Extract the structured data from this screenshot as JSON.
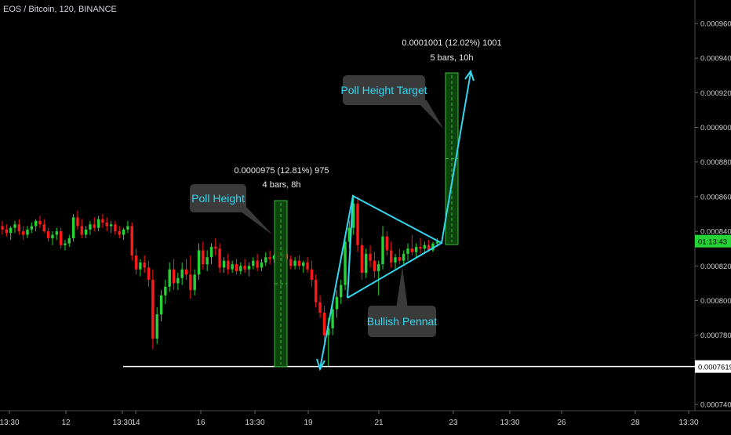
{
  "symbol_title": "EOS / Bitcoin, 120, BINANCE",
  "price_tag": "0.0007619",
  "live_tag": "01:13:43",
  "colors": {
    "background": "#000000",
    "up": "#26d336",
    "down": "#ff1a1a",
    "annotation": "#33d6ee",
    "label_bg": "#3a3a3a",
    "box_fill": "#0f4f0f",
    "box_stroke": "#35c035"
  },
  "annotations": {
    "poll_height_label": "Poll Height",
    "poll_target_label": "Poll Height Target",
    "pennant_label": "Bullish Pennat",
    "measure_1_line1": "0.0000975 (12.81%) 975",
    "measure_1_line2": "4 bars, 8h",
    "measure_2_line1": "0.0001001 (12.02%) 1001",
    "measure_2_line2": "5 bars, 10h"
  },
  "chart_data": {
    "type": "candlestick",
    "title": "EOS / Bitcoin, 120, BINANCE",
    "ylim": [
      0.000739,
      0.000971
    ],
    "y_ticks": [
      "0.0009600",
      "0.0009400",
      "0.0009200",
      "0.0009000",
      "0.0008800",
      "0.0008600",
      "0.0008400",
      "0.0008200",
      "0.0008000",
      "0.0007800",
      "0.0007619",
      "0.0007400"
    ],
    "x_ticks": [
      "13:30",
      "12",
      "13:30",
      "14",
      "16",
      "13:30",
      "19",
      "21",
      "23",
      "13:30",
      "26",
      "28",
      "13:30"
    ],
    "support_level": 0.0007619,
    "last_price": 0.0008343,
    "candles_ohlc": [
      [
        0.000843,
        0.000846,
        0.000838,
        0.000841
      ],
      [
        0.000841,
        0.000844,
        0.000837,
        0.000839
      ],
      [
        0.000839,
        0.000843,
        0.000835,
        0.000842
      ],
      [
        0.000842,
        0.000846,
        0.000839,
        0.000844
      ],
      [
        0.000844,
        0.000847,
        0.000838,
        0.00084
      ],
      [
        0.00084,
        0.000843,
        0.000835,
        0.000838
      ],
      [
        0.000838,
        0.000843,
        0.000836,
        0.000841
      ],
      [
        0.000841,
        0.000845,
        0.000839,
        0.000843
      ],
      [
        0.000843,
        0.000847,
        0.00084,
        0.000846
      ],
      [
        0.000846,
        0.000849,
        0.000842,
        0.000844
      ],
      [
        0.000844,
        0.000847,
        0.000839,
        0.00084
      ],
      [
        0.00084,
        0.000842,
        0.000834,
        0.000836
      ],
      [
        0.000836,
        0.00084,
        0.000832,
        0.000838
      ],
      [
        0.000838,
        0.000842,
        0.000835,
        0.00084
      ],
      [
        0.00084,
        0.000842,
        0.00083,
        0.000832
      ],
      [
        0.000832,
        0.000835,
        0.000829,
        0.000833
      ],
      [
        0.000833,
        0.000838,
        0.000831,
        0.000836
      ],
      [
        0.000836,
        0.00085,
        0.000834,
        0.000848
      ],
      [
        0.000848,
        0.000852,
        0.000841,
        0.000843
      ],
      [
        0.000843,
        0.000847,
        0.000836,
        0.000838
      ],
      [
        0.000838,
        0.000843,
        0.000836,
        0.000841
      ],
      [
        0.000841,
        0.000846,
        0.000838,
        0.000844
      ],
      [
        0.000844,
        0.000848,
        0.00084,
        0.000842
      ],
      [
        0.000842,
        0.000849,
        0.00084,
        0.000847
      ],
      [
        0.000847,
        0.00085,
        0.000842,
        0.000845
      ],
      [
        0.000845,
        0.000848,
        0.00084,
        0.000843
      ],
      [
        0.000843,
        0.000846,
        0.000839,
        0.000844
      ],
      [
        0.000844,
        0.000846,
        0.000838,
        0.00084
      ],
      [
        0.00084,
        0.000843,
        0.000836,
        0.000838
      ],
      [
        0.000838,
        0.000842,
        0.000835,
        0.000841
      ],
      [
        0.000841,
        0.000846,
        0.000839,
        0.000843
      ],
      [
        0.000843,
        0.000845,
        0.000823,
        0.000826
      ],
      [
        0.000826,
        0.00083,
        0.000815,
        0.000818
      ],
      [
        0.000818,
        0.000824,
        0.000814,
        0.000822
      ],
      [
        0.000822,
        0.000826,
        0.000816,
        0.000819
      ],
      [
        0.000819,
        0.000823,
        0.000808,
        0.000812
      ],
      [
        0.000812,
        0.000818,
        0.000772,
        0.000778
      ],
      [
        0.000778,
        0.000796,
        0.000775,
        0.000792
      ],
      [
        0.000792,
        0.000806,
        0.000788,
        0.000803
      ],
      [
        0.000803,
        0.000812,
        0.000798,
        0.000808
      ],
      [
        0.000808,
        0.000822,
        0.000805,
        0.000818
      ],
      [
        0.000818,
        0.000824,
        0.000806,
        0.00081
      ],
      [
        0.00081,
        0.000816,
        0.000806,
        0.000813
      ],
      [
        0.000813,
        0.000822,
        0.000809,
        0.000818
      ],
      [
        0.000818,
        0.000824,
        0.000812,
        0.000815
      ],
      [
        0.000815,
        0.000826,
        0.000801,
        0.000806
      ],
      [
        0.000806,
        0.000818,
        0.000803,
        0.000815
      ],
      [
        0.000815,
        0.000833,
        0.000812,
        0.000829
      ],
      [
        0.000829,
        0.000834,
        0.000818,
        0.000821
      ],
      [
        0.000821,
        0.000829,
        0.000817,
        0.000825
      ],
      [
        0.000825,
        0.000833,
        0.000821,
        0.000831
      ],
      [
        0.000831,
        0.000836,
        0.000826,
        0.00083
      ],
      [
        0.00083,
        0.000833,
        0.000816,
        0.000819
      ],
      [
        0.000819,
        0.000825,
        0.000816,
        0.000823
      ],
      [
        0.000823,
        0.000827,
        0.000815,
        0.000818
      ],
      [
        0.000818,
        0.000823,
        0.000816,
        0.000821
      ],
      [
        0.000821,
        0.000824,
        0.000815,
        0.000817
      ],
      [
        0.000817,
        0.000822,
        0.000815,
        0.00082
      ],
      [
        0.00082,
        0.000824,
        0.000816,
        0.000818
      ],
      [
        0.000818,
        0.000822,
        0.000814,
        0.00082
      ],
      [
        0.00082,
        0.000825,
        0.000818,
        0.000823
      ],
      [
        0.000823,
        0.000827,
        0.000817,
        0.000819
      ],
      [
        0.000819,
        0.000824,
        0.000817,
        0.000822
      ],
      [
        0.000822,
        0.000828,
        0.00082,
        0.000825
      ],
      [
        0.000825,
        0.000829,
        0.000821,
        0.000824
      ],
      [
        0.000824,
        0.000827,
        0.000822,
        0.000826
      ],
      [
        0.000826,
        0.000828,
        0.000823,
        0.000825
      ],
      [
        0.000825,
        0.00083,
        0.000822,
        0.000827
      ],
      [
        0.000827,
        0.000829,
        0.000822,
        0.000824
      ],
      [
        0.000824,
        0.000826,
        0.000818,
        0.00082
      ],
      [
        0.00082,
        0.000825,
        0.000818,
        0.000823
      ],
      [
        0.000823,
        0.000826,
        0.000818,
        0.00082
      ],
      [
        0.00082,
        0.000823,
        0.000816,
        0.000822
      ],
      [
        0.000822,
        0.000825,
        0.000816,
        0.000818
      ],
      [
        0.000818,
        0.000823,
        0.000808,
        0.000812
      ],
      [
        0.000812,
        0.000815,
        0.000796,
        0.000799
      ],
      [
        0.000799,
        0.000803,
        0.00079,
        0.000793
      ],
      [
        0.000793,
        0.000797,
        0.000776,
        0.00078
      ],
      [
        0.00078,
        0.00079,
        0.000762,
        0.000784
      ],
      [
        0.000784,
        0.000798,
        0.00078,
        0.000795
      ],
      [
        0.000795,
        0.000806,
        0.00079,
        0.000802
      ],
      [
        0.000802,
        0.000812,
        0.000798,
        0.000809
      ],
      [
        0.000809,
        0.000838,
        0.000806,
        0.000834
      ],
      [
        0.000834,
        0.000846,
        0.00083,
        0.000842
      ],
      [
        0.000842,
        0.000861,
        0.000838,
        0.000856
      ],
      [
        0.000856,
        0.00086,
        0.000828,
        0.000832
      ],
      [
        0.000832,
        0.000836,
        0.000812,
        0.000816
      ],
      [
        0.000816,
        0.00083,
        0.000813,
        0.000827
      ],
      [
        0.000827,
        0.000832,
        0.000819,
        0.000823
      ],
      [
        0.000823,
        0.000828,
        0.000813,
        0.000817
      ],
      [
        0.000817,
        0.000823,
        0.000803,
        0.000821
      ],
      [
        0.000821,
        0.000843,
        0.000818,
        0.000837
      ],
      [
        0.000837,
        0.00084,
        0.000826,
        0.000829
      ],
      [
        0.000829,
        0.000834,
        0.000819,
        0.000822
      ],
      [
        0.000822,
        0.000827,
        0.000818,
        0.000825
      ],
      [
        0.000825,
        0.00083,
        0.000821,
        0.000823
      ],
      [
        0.000823,
        0.000829,
        0.00082,
        0.000827
      ],
      [
        0.000827,
        0.000833,
        0.000823,
        0.00083
      ],
      [
        0.00083,
        0.000838,
        0.000826,
        0.000828
      ],
      [
        0.000828,
        0.000833,
        0.000825,
        0.000831
      ],
      [
        0.000831,
        0.000836,
        0.000827,
        0.00083
      ],
      [
        0.00083,
        0.000834,
        0.000827,
        0.000832
      ],
      [
        0.000832,
        0.000835,
        0.000828,
        0.000829
      ],
      [
        0.000829,
        0.000834,
        0.000828,
        0.000833
      ],
      [
        0.000833,
        0.000836,
        0.000831,
        0.000834
      ]
    ]
  }
}
